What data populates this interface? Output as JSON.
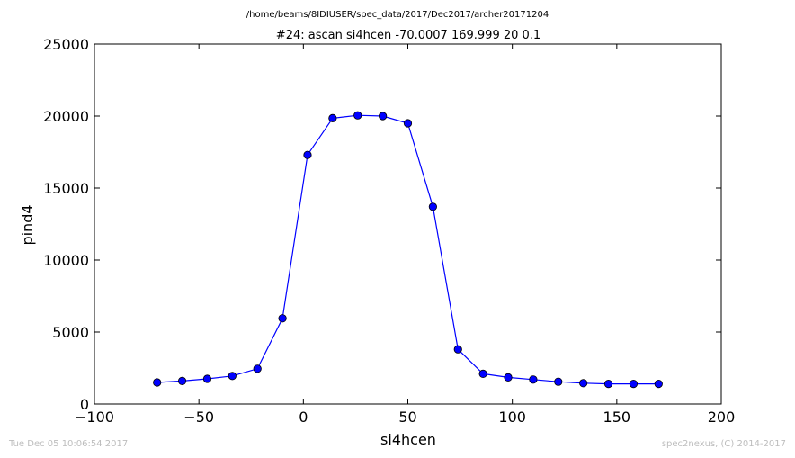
{
  "path_title": "/home/beams/8IDIUSER/spec_data/2017/Dec2017/archer20171204",
  "footer": {
    "left": "Tue Dec 05 10:06:54 2017",
    "right": "spec2nexus, (C) 2014-2017"
  },
  "chart_data": {
    "type": "line",
    "title": "#24: ascan  si4hcen -70.0007 169.999  20 0.1",
    "xlabel": "si4hcen",
    "ylabel": "pind4",
    "xlim": [
      -100,
      200
    ],
    "ylim": [
      0,
      25000
    ],
    "xticks": [
      -100,
      -50,
      0,
      50,
      100,
      150,
      200
    ],
    "xtick_labels": [
      "−100",
      "−50",
      "0",
      "50",
      "100",
      "150",
      "200"
    ],
    "yticks": [
      0,
      5000,
      10000,
      15000,
      20000,
      25000
    ],
    "ytick_labels": [
      "0",
      "5000",
      "10000",
      "15000",
      "20000",
      "25000"
    ],
    "grid": false,
    "color": "#0000ff",
    "series": [
      {
        "x": [
          -70.0,
          -58.0,
          -46.0,
          -34.0,
          -22.0,
          -10.0,
          2.0,
          14.0,
          26.0,
          38.0,
          50.0,
          62.0,
          74.0,
          86.0,
          98.0,
          110.0,
          122.0,
          134.0,
          146.0,
          158.0,
          170.0
        ],
        "y": [
          1500,
          1600,
          1750,
          1950,
          2450,
          5950,
          17300,
          19850,
          20050,
          20000,
          19500,
          13700,
          3800,
          2100,
          1850,
          1700,
          1550,
          1450,
          1400,
          1400,
          1400
        ]
      }
    ]
  }
}
